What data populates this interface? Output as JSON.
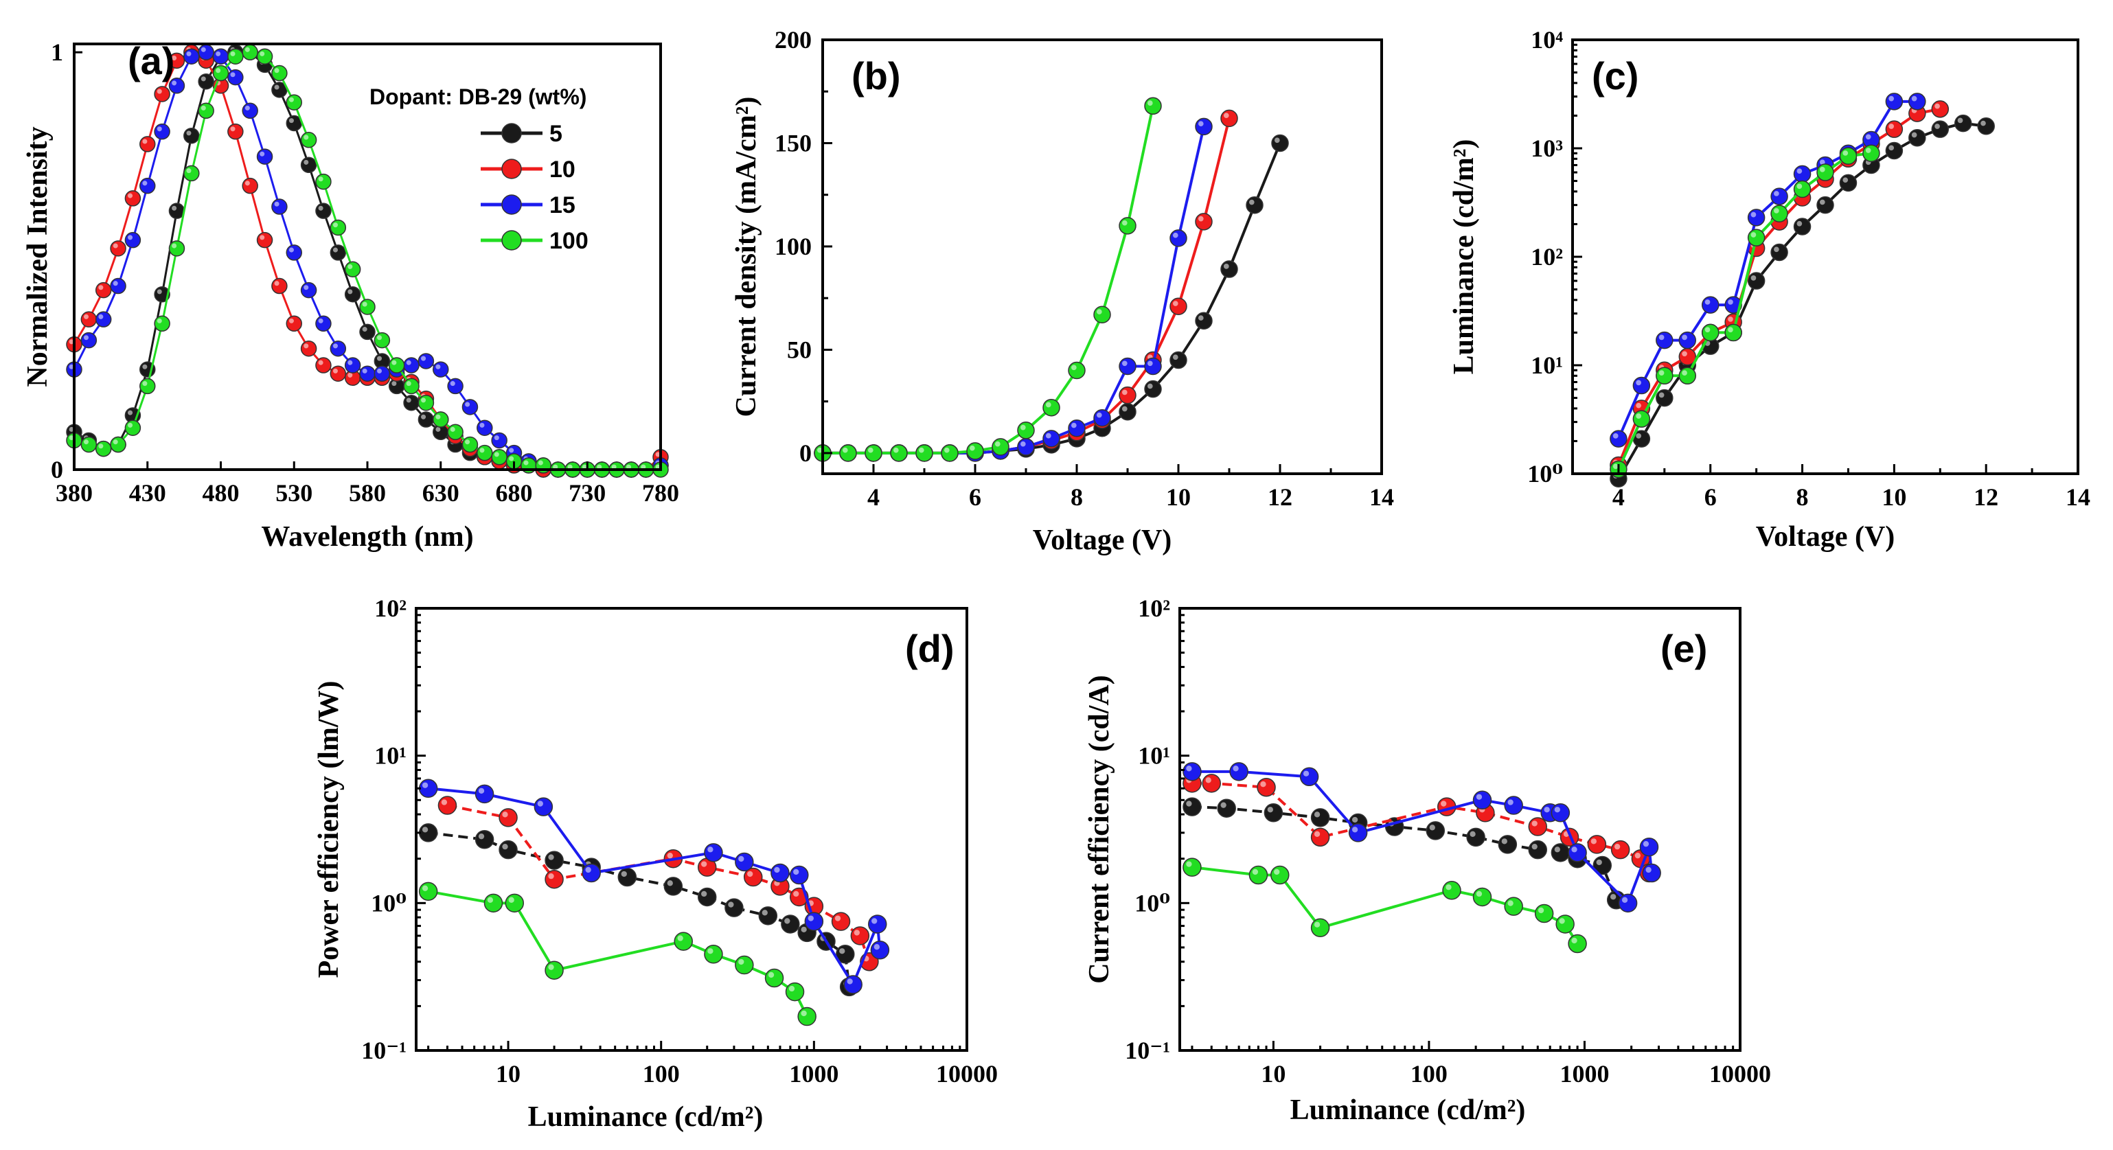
{
  "colors": {
    "5": "#1a1a1a",
    "10": "#ee1c1c",
    "15": "#1c1cee",
    "100": "#22dd22",
    "axis": "#000000"
  },
  "legend": {
    "title": "Dopant: DB-29 (wt%)",
    "items": [
      "5",
      "10",
      "15",
      "100"
    ]
  },
  "chart_data": [
    {
      "type": "line",
      "panel": "(a)",
      "xlabel": "Wavelength (nm)",
      "ylabel": "Normalized Intensity",
      "xlim": [
        380,
        780
      ],
      "ylim": [
        0,
        1.02
      ],
      "xticks": [
        "380",
        "430",
        "480",
        "530",
        "580",
        "630",
        "680",
        "730",
        "780"
      ],
      "yticks": [
        "0",
        "1"
      ],
      "x": [
        380,
        390,
        400,
        410,
        420,
        430,
        440,
        450,
        460,
        470,
        480,
        490,
        500,
        510,
        520,
        530,
        540,
        550,
        560,
        570,
        580,
        590,
        600,
        610,
        620,
        630,
        640,
        650,
        660,
        670,
        680,
        690,
        700,
        710,
        720,
        730,
        740,
        750,
        760,
        770,
        780
      ],
      "series": [
        {
          "name": "5",
          "values": [
            0.09,
            0.07,
            0.05,
            0.06,
            0.13,
            0.24,
            0.42,
            0.62,
            0.8,
            0.93,
            0.99,
            1.0,
            1.0,
            0.97,
            0.91,
            0.83,
            0.73,
            0.62,
            0.52,
            0.42,
            0.33,
            0.26,
            0.2,
            0.16,
            0.12,
            0.09,
            0.06,
            0.04,
            0.03,
            0.02,
            0.01,
            0.01,
            0.0,
            0.0,
            0.0,
            0.0,
            0.0,
            0.0,
            0.0,
            0.0,
            0.01
          ]
        },
        {
          "name": "10",
          "values": [
            0.3,
            0.36,
            0.43,
            0.53,
            0.65,
            0.78,
            0.9,
            0.98,
            1.0,
            0.98,
            0.92,
            0.81,
            0.68,
            0.55,
            0.44,
            0.35,
            0.29,
            0.25,
            0.23,
            0.22,
            0.22,
            0.22,
            0.23,
            0.21,
            0.17,
            0.12,
            0.08,
            0.05,
            0.03,
            0.02,
            0.01,
            0.01,
            0.0,
            0.0,
            0.0,
            0.0,
            0.0,
            0.0,
            0.0,
            0.0,
            0.03
          ]
        },
        {
          "name": "15",
          "values": [
            0.24,
            0.31,
            0.36,
            0.44,
            0.55,
            0.68,
            0.81,
            0.92,
            0.99,
            1.0,
            0.99,
            0.94,
            0.86,
            0.75,
            0.63,
            0.52,
            0.43,
            0.35,
            0.29,
            0.25,
            0.23,
            0.23,
            0.24,
            0.25,
            0.26,
            0.24,
            0.2,
            0.15,
            0.1,
            0.07,
            0.04,
            0.02,
            0.01,
            0.0,
            0.0,
            0.0,
            0.0,
            0.0,
            0.0,
            0.0,
            0.01
          ]
        },
        {
          "name": "100",
          "values": [
            0.07,
            0.06,
            0.05,
            0.06,
            0.1,
            0.2,
            0.35,
            0.53,
            0.71,
            0.86,
            0.95,
            0.99,
            1.0,
            0.99,
            0.95,
            0.88,
            0.79,
            0.69,
            0.58,
            0.48,
            0.39,
            0.31,
            0.25,
            0.2,
            0.16,
            0.12,
            0.09,
            0.06,
            0.04,
            0.03,
            0.02,
            0.01,
            0.01,
            0.0,
            0.0,
            0.0,
            0.0,
            0.0,
            0.0,
            0.0,
            0.0
          ]
        }
      ]
    },
    {
      "type": "line",
      "panel": "(b)",
      "xlabel": "Voltage (V)",
      "ylabel": "Current density (mA/cm²)",
      "xlim": [
        3,
        14
      ],
      "ylim": [
        -10,
        200
      ],
      "xticks": [
        4,
        6,
        8,
        10,
        12,
        14
      ],
      "yticks": [
        0,
        50,
        100,
        150,
        200
      ],
      "series": [
        {
          "name": "5",
          "x": [
            3,
            3.5,
            4,
            4.5,
            5,
            5.5,
            6,
            6.5,
            7,
            7.5,
            8,
            8.5,
            9,
            9.5,
            10,
            10.5,
            11,
            11.5,
            12
          ],
          "values": [
            0,
            0,
            0,
            0,
            0,
            0,
            0,
            1,
            2,
            4,
            7,
            12,
            20,
            31,
            45,
            64,
            89,
            120,
            150
          ]
        },
        {
          "name": "10",
          "x": [
            3,
            3.5,
            4,
            4.5,
            5,
            5.5,
            6,
            6.5,
            7,
            7.5,
            8,
            8.5,
            9,
            9.5,
            10,
            10.5,
            11
          ],
          "values": [
            0,
            0,
            0,
            0,
            0,
            0,
            0,
            1,
            3,
            6,
            10,
            16,
            28,
            45,
            71,
            112,
            162
          ]
        },
        {
          "name": "15",
          "x": [
            3,
            3.5,
            4,
            4.5,
            5,
            5.5,
            6,
            6.5,
            7,
            7.5,
            8,
            8.5,
            9,
            9.5,
            10,
            10.5
          ],
          "values": [
            0,
            0,
            0,
            0,
            0,
            0,
            0,
            1,
            3,
            7,
            12,
            17,
            42,
            42,
            104,
            158
          ]
        },
        {
          "name": "100",
          "x": [
            3,
            3.5,
            4,
            4.5,
            5,
            5.5,
            6,
            6.5,
            7,
            7.5,
            8,
            8.5,
            9,
            9.5
          ],
          "values": [
            0,
            0,
            0,
            0,
            0,
            0,
            1,
            3,
            11,
            22,
            40,
            67,
            110,
            168
          ]
        }
      ]
    },
    {
      "type": "line",
      "panel": "(c)",
      "xlabel": "Voltage (V)",
      "ylabel": "Luminance (cd/m²)",
      "xlim": [
        3,
        14
      ],
      "ylim": [
        1,
        10000
      ],
      "yscale": "log",
      "xticks": [
        4,
        6,
        8,
        10,
        12,
        14
      ],
      "yticks": [
        "10⁰",
        "10¹",
        "10²",
        "10³",
        "10⁴"
      ],
      "series": [
        {
          "name": "5",
          "x": [
            4,
            4.5,
            5,
            5.5,
            6,
            6.5,
            7,
            7.5,
            8,
            8.5,
            9,
            9.5,
            10,
            10.5,
            11,
            11.5,
            12
          ],
          "values": [
            0.9,
            2.1,
            5,
            10,
            15,
            20,
            60,
            110,
            190,
            300,
            480,
            700,
            950,
            1250,
            1500,
            1700,
            1600
          ]
        },
        {
          "name": "10",
          "x": [
            4,
            4.5,
            5,
            5.5,
            6,
            6.5,
            7,
            7.5,
            8,
            8.5,
            9,
            9.5,
            10,
            10.5,
            11
          ],
          "values": [
            1.2,
            4,
            9,
            12,
            20,
            25,
            120,
            210,
            350,
            520,
            800,
            1100,
            1500,
            2100,
            2300
          ]
        },
        {
          "name": "15",
          "x": [
            4,
            4.5,
            5,
            5.5,
            6,
            6.5,
            7,
            7.5,
            8,
            8.5,
            9,
            9.5,
            10,
            10.5
          ],
          "values": [
            2.1,
            6.5,
            17,
            17,
            36,
            36,
            230,
            360,
            580,
            700,
            900,
            1200,
            2700,
            2700
          ]
        },
        {
          "name": "100",
          "x": [
            4,
            4.5,
            5,
            5.5,
            6,
            6.5,
            7,
            7.5,
            8,
            8.5,
            9,
            9.5
          ],
          "values": [
            1.1,
            3.2,
            8,
            8,
            20,
            20,
            150,
            250,
            420,
            600,
            850,
            900
          ]
        }
      ]
    },
    {
      "type": "line",
      "panel": "(d)",
      "xlabel": "Luminance (cd/m²)",
      "ylabel": "Power efficiency (lm/W)",
      "xscale": "log",
      "yscale": "log",
      "xlim": [
        2.5,
        10000
      ],
      "ylim": [
        0.1,
        100
      ],
      "xticks": [
        "10",
        "100",
        "1000",
        "10000"
      ],
      "yticks": [
        "10⁻¹",
        "10⁰",
        "10¹",
        "10²"
      ],
      "series": [
        {
          "name": "5",
          "x": [
            3,
            7,
            10,
            20,
            35,
            60,
            120,
            200,
            300,
            500,
            700,
            900,
            1200,
            1600,
            1700
          ],
          "values": [
            3.0,
            2.7,
            2.3,
            1.95,
            1.75,
            1.5,
            1.3,
            1.1,
            0.93,
            0.82,
            0.72,
            0.63,
            0.55,
            0.45,
            0.27
          ]
        },
        {
          "name": "10",
          "x": [
            4,
            10,
            20,
            120,
            200,
            400,
            600,
            800,
            1000,
            1500,
            2000,
            2300
          ],
          "values": [
            4.6,
            3.8,
            1.45,
            2.0,
            1.75,
            1.5,
            1.3,
            1.1,
            0.95,
            0.75,
            0.6,
            0.4
          ]
        },
        {
          "name": "15",
          "x": [
            3,
            7,
            17,
            35,
            220,
            350,
            600,
            800,
            1000,
            1800,
            2600,
            2700
          ],
          "values": [
            6.0,
            5.5,
            4.5,
            1.6,
            2.2,
            1.9,
            1.6,
            1.55,
            0.75,
            0.28,
            0.72,
            0.48
          ]
        },
        {
          "name": "100",
          "x": [
            3,
            8,
            11,
            20,
            140,
            220,
            350,
            550,
            750,
            900
          ],
          "values": [
            1.2,
            1.0,
            1.0,
            0.35,
            0.55,
            0.45,
            0.38,
            0.31,
            0.25,
            0.17
          ]
        }
      ]
    },
    {
      "type": "line",
      "panel": "(e)",
      "xlabel": "Luminance (cd/m²)",
      "ylabel": "Current efficiency (cd/A)",
      "xscale": "log",
      "yscale": "log",
      "xlim": [
        2.5,
        10000
      ],
      "ylim": [
        0.1,
        100
      ],
      "xticks": [
        "10",
        "100",
        "1000",
        "10000"
      ],
      "yticks": [
        "10⁻¹",
        "10⁰",
        "10¹",
        "10²"
      ],
      "series": [
        {
          "name": "5",
          "x": [
            3,
            5,
            10,
            20,
            35,
            60,
            110,
            200,
            320,
            500,
            700,
            900,
            1300,
            1600
          ],
          "values": [
            4.5,
            4.4,
            4.1,
            3.8,
            3.5,
            3.3,
            3.1,
            2.8,
            2.5,
            2.3,
            2.2,
            2.0,
            1.8,
            1.05
          ]
        },
        {
          "name": "10",
          "x": [
            3,
            4,
            9,
            20,
            130,
            230,
            500,
            800,
            1200,
            1700,
            2300,
            2600
          ],
          "values": [
            6.5,
            6.5,
            6.1,
            2.8,
            4.5,
            4.1,
            3.3,
            2.8,
            2.5,
            2.3,
            2.0,
            1.6
          ]
        },
        {
          "name": "15",
          "x": [
            3,
            6,
            17,
            35,
            220,
            350,
            600,
            700,
            900,
            1900,
            2600,
            2700
          ],
          "values": [
            7.8,
            7.8,
            7.2,
            3.0,
            5.0,
            4.6,
            4.1,
            4.1,
            2.2,
            1.0,
            2.4,
            1.6
          ]
        },
        {
          "name": "100",
          "x": [
            3,
            8,
            11,
            20,
            140,
            220,
            350,
            550,
            750,
            900
          ],
          "values": [
            1.75,
            1.55,
            1.55,
            0.68,
            1.22,
            1.1,
            0.95,
            0.85,
            0.72,
            0.53
          ]
        }
      ]
    }
  ]
}
